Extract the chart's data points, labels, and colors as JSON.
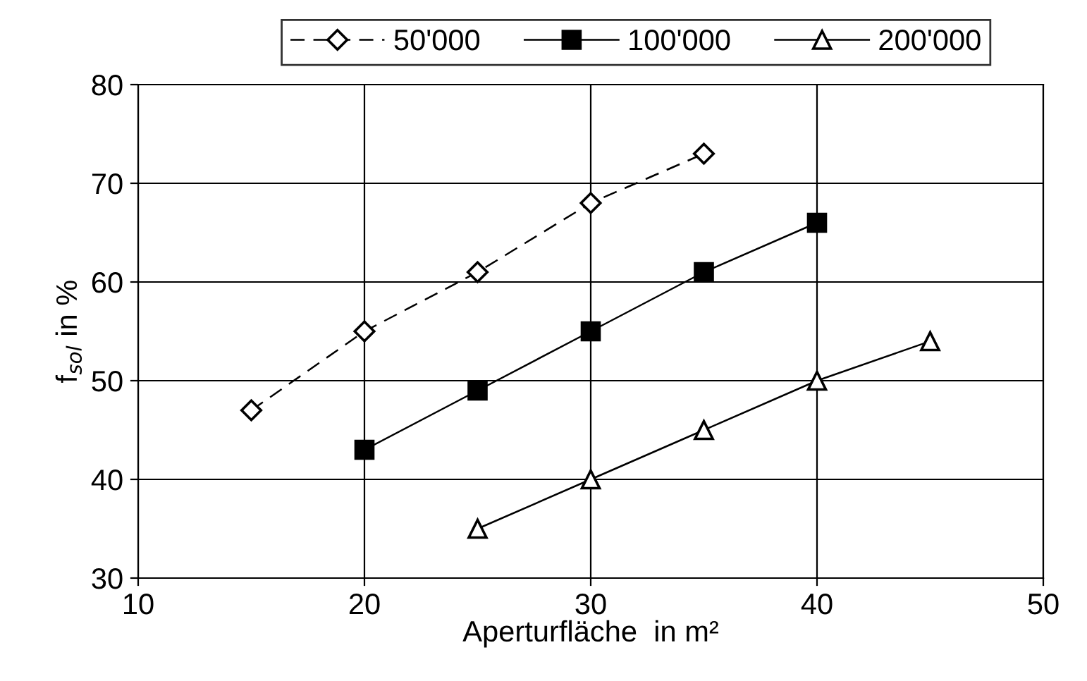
{
  "chart_data": {
    "type": "line",
    "xlabel": "Aperturfläche  in m²",
    "ylabel": "f$_{sol}$ in %",
    "xlim": [
      10,
      50
    ],
    "xticks": [
      10,
      20,
      30,
      40,
      50
    ],
    "ylim": [
      30,
      80
    ],
    "yticks": [
      30,
      40,
      50,
      60,
      70,
      80
    ],
    "grid": true,
    "legend": "top",
    "series": [
      {
        "name": "50'000",
        "color": "#000000",
        "marker": "diamond",
        "line_style": "dashed",
        "x": [
          15,
          20,
          25,
          30,
          35
        ],
        "values": [
          47,
          55,
          61,
          68,
          73
        ]
      },
      {
        "name": "100'000",
        "color": "#000000",
        "marker": "square",
        "line_style": "solid",
        "x": [
          20,
          25,
          30,
          35,
          40
        ],
        "values": [
          43,
          49,
          55,
          61,
          66
        ]
      },
      {
        "name": "200'000",
        "color": "#000000",
        "marker": "triangle",
        "line_style": "solid",
        "x": [
          25,
          30,
          35,
          40,
          45
        ],
        "values": [
          35,
          40,
          45,
          50,
          54
        ]
      }
    ]
  }
}
